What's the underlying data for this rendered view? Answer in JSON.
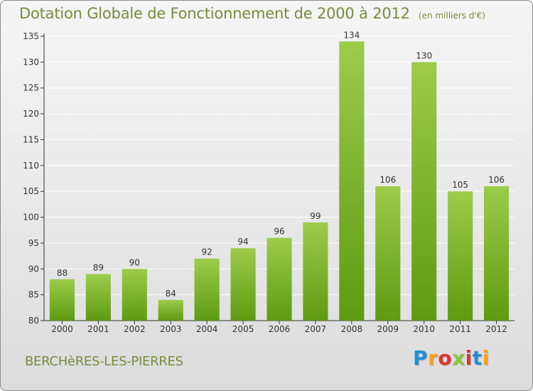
{
  "header": {
    "title": "Dotation Globale de Fonctionnement de 2000 à 2012",
    "subtitle": "(en milliers d'€)"
  },
  "footer": {
    "commune": "BERCHèRES-LES-PIERRES",
    "logo_text": "Proxiti"
  },
  "colors": {
    "bar_light": "#9ccc4a",
    "bar_dark": "#5e9a12",
    "title": "#7a8a3c",
    "gridline": "#ffffff"
  },
  "chart_data": {
    "type": "bar",
    "title": "Dotation Globale de Fonctionnement de 2000 à 2012",
    "subtitle": "(en milliers d'€)",
    "xlabel": "",
    "ylabel": "",
    "categories": [
      "2000",
      "2001",
      "2002",
      "2003",
      "2004",
      "2005",
      "2006",
      "2007",
      "2008",
      "2009",
      "2010",
      "2011",
      "2012"
    ],
    "values": [
      88,
      89,
      90,
      84,
      92,
      94,
      96,
      99,
      134,
      106,
      130,
      105,
      106
    ],
    "ylim": [
      80,
      135
    ],
    "yticks": [
      80,
      85,
      90,
      95,
      100,
      105,
      110,
      115,
      120,
      125,
      130,
      135
    ],
    "grid": true,
    "data_labels": true,
    "legend": "none"
  }
}
